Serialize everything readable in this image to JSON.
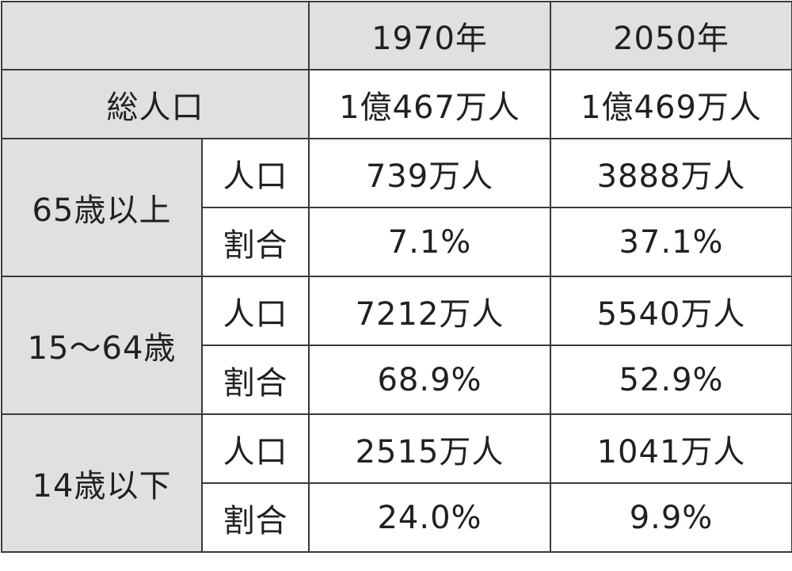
{
  "table": {
    "header": {
      "corner": "",
      "col1": "1970年",
      "col2": "2050年"
    },
    "total": {
      "label": "総人口",
      "v1970": "1億467万人",
      "v2050": "1億469万人"
    },
    "groups": [
      {
        "label": "65歳以上",
        "population": {
          "label": "人口",
          "v1970": "739万人",
          "v2050": "3888万人"
        },
        "share": {
          "label": "割合",
          "v1970": "7.1%",
          "v2050": "37.1%"
        }
      },
      {
        "label": "15〜64歳",
        "population": {
          "label": "人口",
          "v1970": "7212万人",
          "v2050": "5540万人"
        },
        "share": {
          "label": "割合",
          "v1970": "68.9%",
          "v2050": "52.9%"
        }
      },
      {
        "label": "14歳以下",
        "population": {
          "label": "人口",
          "v1970": "2515万人",
          "v2050": "1041万人"
        },
        "share": {
          "label": "割合",
          "v1970": "24.0%",
          "v2050": "9.9%"
        }
      }
    ]
  }
}
